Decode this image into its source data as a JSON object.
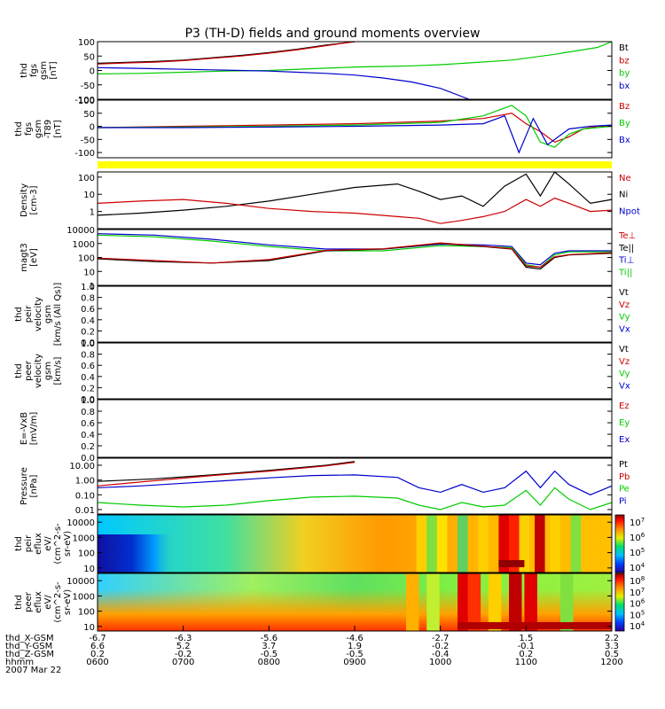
{
  "title": "P3 (TH-D) fields and ground moments overview",
  "chart_data": [
    {
      "type": "line",
      "name": "fgs",
      "ylabel": [
        "thd",
        "fgs",
        "gsm",
        "[nT]"
      ],
      "ylim": [
        -100,
        100
      ],
      "yticks": [
        "100",
        "50",
        "0",
        "-50",
        "-100"
      ],
      "yvals": [
        100,
        50,
        0,
        -50,
        -100
      ],
      "legend": [
        {
          "label": "Bt",
          "color": "#000000"
        },
        {
          "label": "bz",
          "color": "#cc0000"
        },
        {
          "label": "by",
          "color": "#00cc00"
        },
        {
          "label": "bx",
          "color": "#0000cc"
        }
      ],
      "series": [
        {
          "name": "Bt",
          "color": "#000000",
          "x": [
            0,
            20,
            40,
            60,
            80,
            100,
            120,
            140,
            160,
            180
          ],
          "y": [
            25,
            28,
            31,
            36,
            44,
            52,
            62,
            74,
            88,
            100
          ]
        },
        {
          "name": "bz",
          "color": "#cc0000",
          "x": [
            0,
            20,
            40,
            60,
            80,
            100,
            120,
            140,
            160,
            180
          ],
          "y": [
            22,
            26,
            29,
            34,
            42,
            50,
            60,
            72,
            86,
            100
          ]
        },
        {
          "name": "by",
          "color": "#00cc00",
          "x": [
            0,
            30,
            60,
            90,
            120,
            150,
            170,
            180,
            200,
            220,
            240,
            260,
            290,
            320,
            350,
            360
          ],
          "y": [
            -12,
            -10,
            -6,
            -2,
            0,
            6,
            10,
            12,
            14,
            16,
            20,
            26,
            36,
            56,
            80,
            100
          ]
        },
        {
          "name": "bx",
          "color": "#0000cc",
          "x": [
            0,
            20,
            40,
            60,
            80,
            100,
            120,
            140,
            160,
            180,
            200,
            220,
            240,
            260
          ],
          "y": [
            10,
            8,
            6,
            4,
            2,
            0,
            -2,
            -6,
            -10,
            -16,
            -26,
            -40,
            -62,
            -100
          ]
        }
      ]
    },
    {
      "type": "line",
      "name": "fgs_t89",
      "ylabel": [
        "thd",
        "fgs",
        "gsm",
        "-T89",
        "[nT]"
      ],
      "ylim": [
        -120,
        100
      ],
      "yticks": [
        "100",
        "50",
        "0",
        "-50",
        "-100"
      ],
      "yvals": [
        100,
        50,
        0,
        -50,
        -100
      ],
      "legend": [
        {
          "label": "Bz",
          "color": "#cc0000"
        },
        {
          "label": "By",
          "color": "#00cc00"
        },
        {
          "label": "Bx",
          "color": "#0000cc"
        }
      ],
      "series": [
        {
          "name": "Bz",
          "color": "#cc0000",
          "x": [
            0,
            60,
            120,
            180,
            240,
            270,
            290,
            300,
            310,
            320,
            330,
            340,
            350,
            360
          ],
          "y": [
            -5,
            0,
            5,
            10,
            20,
            30,
            50,
            10,
            -20,
            -60,
            -40,
            -10,
            0,
            0
          ]
        },
        {
          "name": "By",
          "color": "#00cc00",
          "x": [
            0,
            60,
            120,
            180,
            240,
            270,
            290,
            300,
            310,
            320,
            330,
            340,
            350,
            360
          ],
          "y": [
            -5,
            -3,
            0,
            5,
            15,
            40,
            80,
            40,
            -60,
            -80,
            -30,
            -10,
            -5,
            0
          ]
        },
        {
          "name": "Bx",
          "color": "#0000cc",
          "x": [
            0,
            60,
            120,
            180,
            240,
            270,
            285,
            295,
            305,
            315,
            330,
            345,
            360
          ],
          "y": [
            -5,
            -5,
            -3,
            0,
            5,
            10,
            40,
            -100,
            30,
            -70,
            -10,
            0,
            5
          ]
        }
      ]
    },
    {
      "type": "line",
      "name": "density",
      "ylabel": [
        "Density",
        "[cm-3]"
      ],
      "ylim": [
        0.1,
        200
      ],
      "yscale": "log",
      "yticks": [
        "100",
        "10",
        "1"
      ],
      "yvals": [
        100,
        10,
        1
      ],
      "legend": [
        {
          "label": "Ne",
          "color": "#cc0000"
        },
        {
          "label": "Ni",
          "color": "#000000"
        },
        {
          "label": "Npot",
          "color": "#0000cc"
        }
      ],
      "series": [
        {
          "name": "Ni",
          "color": "#000000",
          "x": [
            0,
            30,
            60,
            90,
            120,
            150,
            180,
            210,
            225,
            240,
            255,
            270,
            285,
            300,
            310,
            320,
            330,
            345,
            360
          ],
          "y": [
            0.6,
            0.8,
            1.2,
            2,
            4,
            10,
            25,
            40,
            15,
            5,
            8,
            2,
            30,
            150,
            8,
            200,
            40,
            3,
            5
          ]
        },
        {
          "name": "Ne",
          "color": "#cc0000",
          "x": [
            0,
            30,
            60,
            90,
            120,
            150,
            180,
            210,
            225,
            240,
            255,
            270,
            285,
            300,
            310,
            320,
            330,
            345,
            360
          ],
          "y": [
            3,
            4,
            5,
            3,
            1.5,
            1,
            0.8,
            0.5,
            0.4,
            0.2,
            0.3,
            0.5,
            1,
            5,
            2,
            6,
            3,
            1,
            1.2
          ]
        }
      ]
    },
    {
      "type": "line",
      "name": "temperature",
      "ylabel": [
        "magt3",
        "[eV]"
      ],
      "ylim": [
        1,
        10000
      ],
      "yscale": "log",
      "yticks": [
        "10000",
        "1000",
        "100",
        "10",
        "1"
      ],
      "yvals": [
        10000,
        1000,
        100,
        10,
        1
      ],
      "legend": [
        {
          "label": "Te⊥",
          "color": "#cc0000"
        },
        {
          "label": "Te||",
          "color": "#000000"
        },
        {
          "label": "Ti⊥",
          "color": "#0000cc"
        },
        {
          "label": "Ti||",
          "color": "#00cc00"
        }
      ],
      "series": [
        {
          "name": "Ti⊥",
          "color": "#0000cc",
          "x": [
            0,
            40,
            80,
            120,
            160,
            200,
            240,
            270,
            290,
            300,
            310,
            320,
            330,
            360
          ],
          "y": [
            5000,
            4000,
            2000,
            800,
            400,
            400,
            900,
            800,
            600,
            40,
            30,
            200,
            300,
            300
          ]
        },
        {
          "name": "Ti||",
          "color": "#00cc00",
          "x": [
            0,
            40,
            80,
            120,
            160,
            200,
            240,
            270,
            290,
            300,
            310,
            320,
            330,
            360
          ],
          "y": [
            4000,
            3000,
            1500,
            600,
            300,
            300,
            700,
            600,
            500,
            30,
            20,
            150,
            250,
            250
          ]
        },
        {
          "name": "Te||",
          "color": "#000000",
          "x": [
            0,
            40,
            80,
            120,
            160,
            200,
            240,
            270,
            290,
            300,
            310,
            320,
            330,
            360
          ],
          "y": [
            80,
            50,
            40,
            60,
            300,
            400,
            1000,
            600,
            400,
            20,
            15,
            100,
            150,
            200
          ]
        },
        {
          "name": "Te⊥",
          "color": "#cc0000",
          "x": [
            0,
            40,
            80,
            120,
            160,
            200,
            240,
            270,
            290,
            300,
            310,
            320,
            330,
            360
          ],
          "y": [
            90,
            60,
            40,
            70,
            320,
            420,
            1100,
            650,
            420,
            25,
            20,
            110,
            160,
            220
          ]
        }
      ]
    },
    {
      "type": "line",
      "name": "peir_velocity",
      "ylabel": [
        "thd",
        "peir",
        "velocity",
        "gsm",
        "[km/s (All Qs)]"
      ],
      "ylim": [
        0,
        1
      ],
      "yticks": [
        "1.0",
        "0.8",
        "0.6",
        "0.4",
        "0.2",
        "0.0"
      ],
      "yvals": [
        1,
        0.8,
        0.6,
        0.4,
        0.2,
        0
      ],
      "legend": [
        {
          "label": "Vt",
          "color": "#000000"
        },
        {
          "label": "Vz",
          "color": "#cc0000"
        },
        {
          "label": "Vy",
          "color": "#00cc00"
        },
        {
          "label": "Vx",
          "color": "#0000cc"
        }
      ],
      "series": []
    },
    {
      "type": "line",
      "name": "peer_velocity",
      "ylabel": [
        "thd",
        "peer",
        "velocity",
        "gsm",
        "[km/s]"
      ],
      "ylim": [
        0,
        1
      ],
      "yticks": [
        "1.0",
        "0.8",
        "0.6",
        "0.4",
        "0.2",
        "0.0"
      ],
      "yvals": [
        1,
        0.8,
        0.6,
        0.4,
        0.2,
        0
      ],
      "legend": [
        {
          "label": "Vt",
          "color": "#000000"
        },
        {
          "label": "Vz",
          "color": "#cc0000"
        },
        {
          "label": "Vy",
          "color": "#00cc00"
        },
        {
          "label": "Vx",
          "color": "#0000cc"
        }
      ],
      "series": []
    },
    {
      "type": "line",
      "name": "e_field",
      "ylabel": [
        "E=-VxB",
        "[mV/m]"
      ],
      "ylim": [
        0,
        1
      ],
      "yticks": [
        "1.0",
        "0.8",
        "0.6",
        "0.4",
        "0.2",
        "0.0"
      ],
      "yvals": [
        1,
        0.8,
        0.6,
        0.4,
        0.2,
        0
      ],
      "legend": [
        {
          "label": "Ez",
          "color": "#cc0000"
        },
        {
          "label": "Ey",
          "color": "#00cc00"
        },
        {
          "label": "Ex",
          "color": "#0000cc"
        }
      ],
      "series": []
    },
    {
      "type": "line",
      "name": "pressure",
      "ylabel": [
        "Pressure",
        "[nPa]"
      ],
      "ylim": [
        0.005,
        30
      ],
      "yscale": "log",
      "yticks": [
        "10.00",
        "1.00",
        "0.10",
        "0.01"
      ],
      "yvals": [
        10,
        1,
        0.1,
        0.01
      ],
      "legend": [
        {
          "label": "Pt",
          "color": "#000000"
        },
        {
          "label": "Pb",
          "color": "#cc0000"
        },
        {
          "label": "Pe",
          "color": "#00cc00"
        },
        {
          "label": "Pi",
          "color": "#0000cc"
        }
      ],
      "series": [
        {
          "name": "Pt",
          "color": "#000000",
          "x": [
            0,
            40,
            80,
            120,
            160,
            180
          ],
          "y": [
            0.8,
            1.2,
            2.2,
            4.5,
            10,
            18
          ]
        },
        {
          "name": "Pb",
          "color": "#cc0000",
          "x": [
            0,
            40,
            80,
            120,
            160,
            180
          ],
          "y": [
            0.4,
            0.9,
            2,
            4,
            9,
            16
          ]
        },
        {
          "name": "Pi",
          "color": "#0000cc",
          "x": [
            0,
            30,
            60,
            90,
            120,
            150,
            180,
            210,
            225,
            240,
            255,
            270,
            285,
            300,
            310,
            320,
            330,
            345,
            360
          ],
          "y": [
            0.3,
            0.4,
            0.6,
            0.9,
            1.4,
            2,
            2.2,
            1.5,
            0.3,
            0.15,
            0.5,
            0.15,
            0.3,
            4,
            0.3,
            4,
            0.5,
            0.1,
            0.4
          ]
        },
        {
          "name": "Pe",
          "color": "#00cc00",
          "x": [
            0,
            30,
            60,
            90,
            120,
            150,
            180,
            210,
            225,
            240,
            255,
            270,
            285,
            300,
            310,
            320,
            330,
            345,
            360
          ],
          "y": [
            0.03,
            0.02,
            0.015,
            0.02,
            0.04,
            0.07,
            0.08,
            0.06,
            0.02,
            0.01,
            0.03,
            0.015,
            0.02,
            0.2,
            0.02,
            0.3,
            0.05,
            0.01,
            0.03
          ]
        }
      ]
    },
    {
      "type": "heatmap",
      "name": "peir_eflux",
      "ylabel": [
        "thd",
        "peir",
        "eflux",
        "eV/",
        "(cm^2-s-",
        "sr-eV)"
      ],
      "ylim": [
        5,
        30000
      ],
      "yscale": "log",
      "yticks": [
        "10000",
        "1000",
        "100",
        "10"
      ],
      "yvals": [
        10000,
        1000,
        100,
        10
      ],
      "colorbar_ticks": [
        "10^7",
        "10^6",
        "10^5",
        "10^4"
      ]
    },
    {
      "type": "heatmap",
      "name": "peer_eflux",
      "ylabel": [
        "thd",
        "peer",
        "eflux",
        "eV/",
        "(cm^2-s-",
        "sr-eV)"
      ],
      "ylim": [
        5,
        30000
      ],
      "yscale": "log",
      "yticks": [
        "10000",
        "1000",
        "100",
        "10"
      ],
      "yvals": [
        10000,
        1000,
        100,
        10
      ],
      "colorbar_ticks": [
        "10^8",
        "10^7",
        "10^6",
        "10^5",
        "10^4"
      ]
    }
  ],
  "xaxis": {
    "row_labels": [
      "thd_X-GSM",
      "thd_Y-GSM",
      "thd_Z-GSM",
      "hhmm",
      "2007 Mar 22"
    ],
    "columns": [
      {
        "x": [
          "-6.7",
          "6.6",
          "0.2",
          "0600"
        ]
      },
      {
        "x": [
          "-6.3",
          "5.2",
          "-0.2",
          "0700"
        ]
      },
      {
        "x": [
          "-5.6",
          "3.7",
          "-0.5",
          "0800"
        ]
      },
      {
        "x": [
          "-4.6",
          "1.9",
          "-0.5",
          "0900"
        ]
      },
      {
        "x": [
          "-2.7",
          "-0.2",
          "-0.4",
          "1000"
        ]
      },
      {
        "x": [
          "1.5",
          "-0.1",
          "0.2",
          "1100"
        ]
      },
      {
        "x": [
          "2.2",
          "3.3",
          "0.5",
          "1200"
        ]
      }
    ]
  }
}
